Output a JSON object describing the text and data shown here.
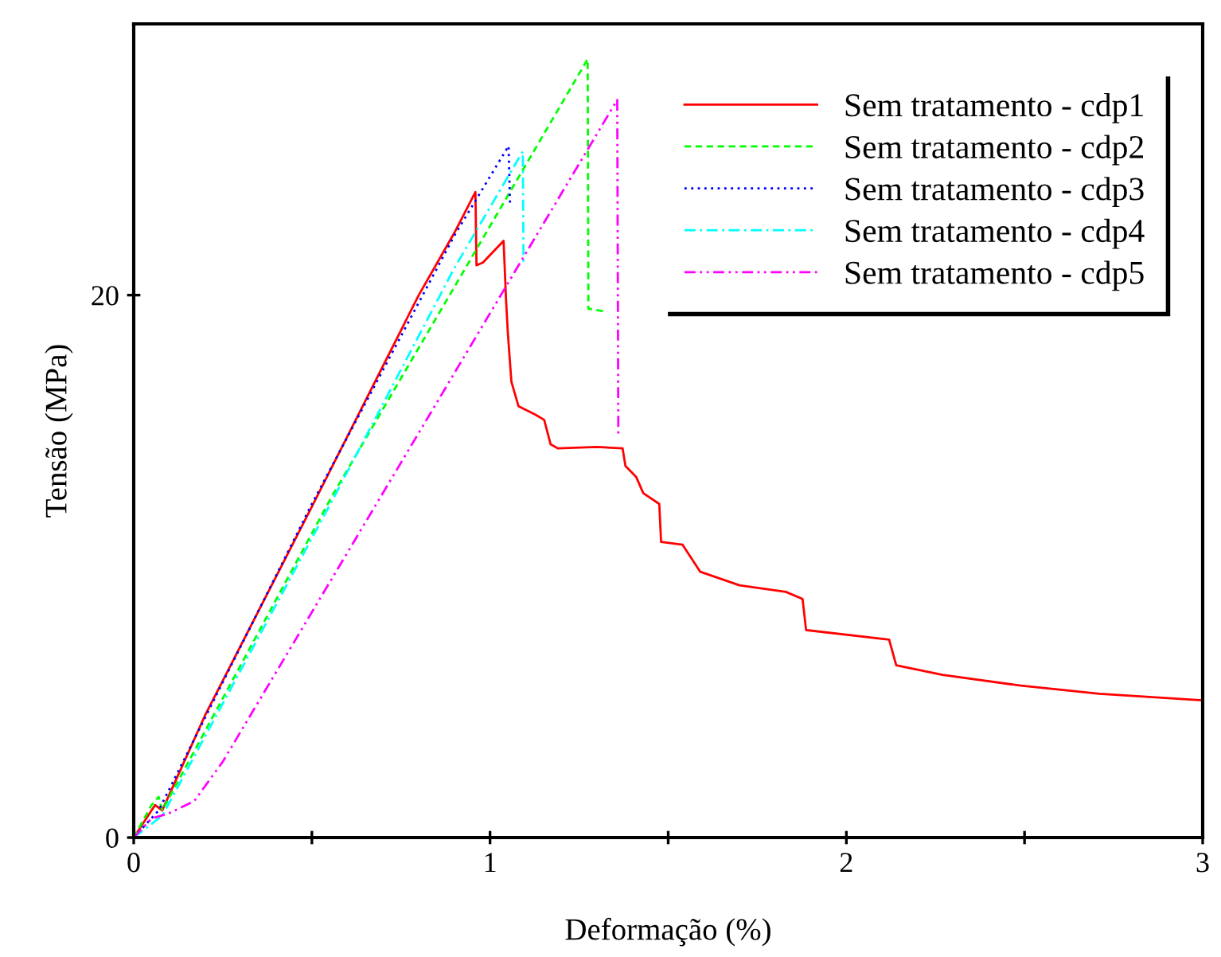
{
  "chart_data": {
    "type": "line",
    "xlabel": "Deformação (%)",
    "ylabel": "Tensão (MPa)",
    "xlim": [
      0,
      3
    ],
    "ylim": [
      0,
      30
    ],
    "xticks": [
      0,
      {
        "value": 0.5,
        "label": null
      },
      1,
      {
        "value": 1.5,
        "label": null
      },
      2,
      {
        "value": 2.5,
        "label": null
      },
      3
    ],
    "yticks": [
      0,
      20
    ],
    "grid": false,
    "legend": "top right",
    "marker": "none",
    "series": [
      {
        "name": "Sem tratamento - cdp1",
        "color": "#ff0000",
        "line_style": "solid",
        "x": [
          0,
          0.06,
          0.08,
          0.2,
          0.5,
          0.8,
          0.9,
          0.959,
          0.962,
          0.98,
          1.038,
          1.045,
          1.05,
          1.06,
          1.08,
          1.126,
          1.152,
          1.17,
          1.19,
          1.3,
          1.372,
          1.38,
          1.41,
          1.43,
          1.475,
          1.48,
          1.54,
          1.59,
          1.7,
          1.83,
          1.877,
          1.887,
          2.12,
          2.14,
          2.27,
          2.49,
          2.71,
          3.0
        ],
        "values": [
          0,
          1.2,
          1.0,
          4.5,
          12.2,
          20.0,
          22.3,
          23.8,
          21.1,
          21.2,
          22.0,
          19.8,
          18.6,
          16.8,
          15.9,
          15.6,
          15.4,
          14.5,
          14.35,
          14.4,
          14.35,
          13.7,
          13.3,
          12.7,
          12.3,
          10.9,
          10.8,
          9.8,
          9.3,
          9.06,
          8.8,
          7.65,
          7.3,
          6.35,
          6.0,
          5.6,
          5.3,
          5.06
        ]
      },
      {
        "name": "Sem tratamento - cdp2",
        "color": "#00ff00",
        "line_style": "dashed",
        "x": [
          0,
          0.05,
          0.07,
          0.08,
          0.557,
          1.274,
          1.276,
          1.32
        ],
        "values": [
          0,
          1.2,
          1.5,
          1.0,
          12.6,
          28.7,
          19.5,
          19.4
        ]
      },
      {
        "name": "Sem tratamento - cdp3",
        "color": "#0000ff",
        "line_style": "dotted",
        "x": [
          0,
          0.07,
          0.5,
          0.9,
          1.052,
          1.056
        ],
        "values": [
          0,
          1.0,
          12.3,
          22.2,
          25.5,
          23.4
        ]
      },
      {
        "name": "Sem tratamento - cdp4",
        "color": "#00ffff",
        "line_style": "dashdot",
        "x": [
          0,
          0.08,
          0.56,
          0.9,
          1.092,
          1.094
        ],
        "values": [
          0,
          0.8,
          12.5,
          21.0,
          25.3,
          21.1
        ]
      },
      {
        "name": "Sem tratamento - cdp5",
        "color": "#ff00ff",
        "line_style": "dashdotdot",
        "x": [
          0,
          0.05,
          0.1,
          0.17,
          0.25,
          1.357,
          1.36
        ],
        "values": [
          0,
          0.7,
          0.9,
          1.35,
          2.8,
          27.2,
          14.9
        ]
      }
    ]
  }
}
